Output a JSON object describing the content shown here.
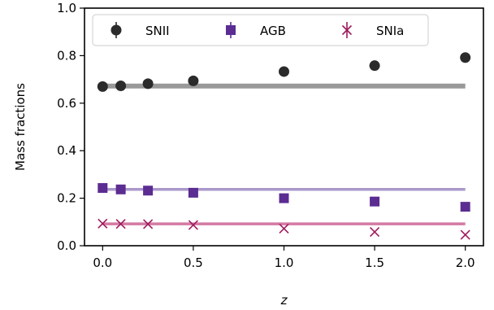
{
  "chart_data": {
    "type": "scatter",
    "xlabel": "z",
    "ylabel": "Mass fractions",
    "xlim": [
      -0.1,
      2.1
    ],
    "ylim": [
      0.0,
      1.0
    ],
    "x_ticks": [
      "0.0",
      "0.5",
      "1.0",
      "1.5",
      "2.0"
    ],
    "y_ticks": [
      "0.0",
      "0.2",
      "0.4",
      "0.6",
      "0.8",
      "1.0"
    ],
    "legend_position": "top",
    "x": [
      0.0,
      0.1,
      0.25,
      0.5,
      1.0,
      1.5,
      2.0
    ],
    "series": [
      {
        "name": "SNII",
        "marker": "circle",
        "color": "#2b2b2b",
        "values": [
          0.67,
          0.673,
          0.682,
          0.694,
          0.733,
          0.758,
          0.792
        ],
        "err": [
          0.008,
          0.008,
          0.008,
          0.009,
          0.01,
          0.014,
          0.016
        ],
        "line_value": 0.672,
        "line_color": "#999999"
      },
      {
        "name": "AGB",
        "marker": "square",
        "color": "#5b2c91",
        "values": [
          0.243,
          0.237,
          0.232,
          0.223,
          0.2,
          0.186,
          0.164
        ],
        "err": [
          0.005,
          0.005,
          0.005,
          0.005,
          0.006,
          0.006,
          0.007
        ],
        "line_value": 0.237,
        "line_color": "#ab98cc"
      },
      {
        "name": "SNIa",
        "marker": "x",
        "color": "#9e1a5d",
        "values": [
          0.093,
          0.092,
          0.091,
          0.087,
          0.072,
          0.058,
          0.046
        ],
        "err": [
          0.002,
          0.002,
          0.002,
          0.002,
          0.002,
          0.002,
          0.002
        ],
        "line_value": 0.092,
        "line_color": "#d47aa2"
      }
    ]
  }
}
